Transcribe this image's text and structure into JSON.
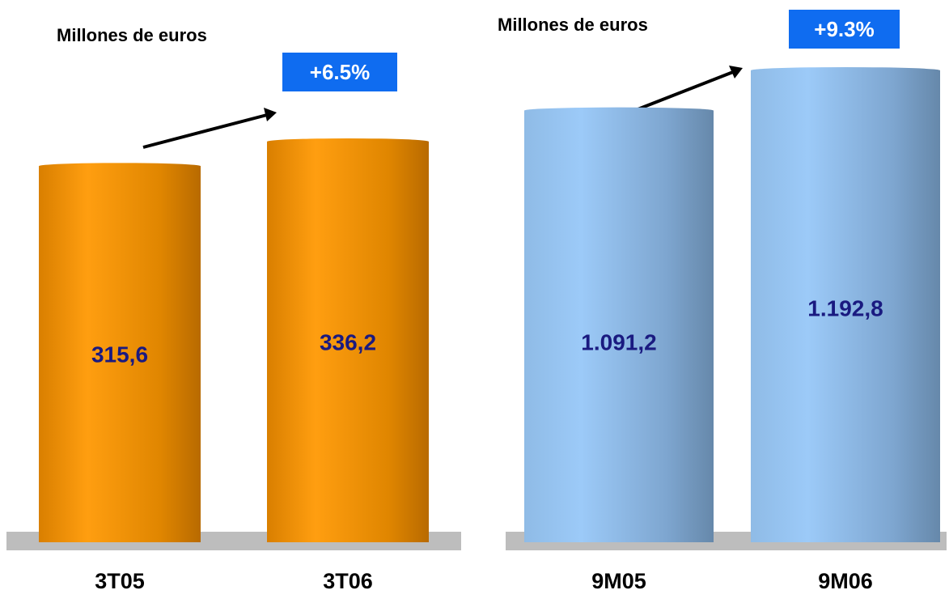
{
  "chart_data": [
    {
      "type": "bar",
      "title": "Millones de euros",
      "categories": [
        "3T05",
        "3T06"
      ],
      "values": [
        315.6,
        336.2
      ],
      "value_labels": [
        "315,6",
        "336,2"
      ],
      "color": "#f39200",
      "annotation": "+6.5%"
    },
    {
      "type": "bar",
      "title": "Millones de euros",
      "categories": [
        "9M05",
        "9M06"
      ],
      "values": [
        1091.2,
        1192.8
      ],
      "value_labels": [
        "1.091,2",
        "1.192,8"
      ],
      "color": "#8ab8e6",
      "annotation": "+9.3%"
    }
  ]
}
